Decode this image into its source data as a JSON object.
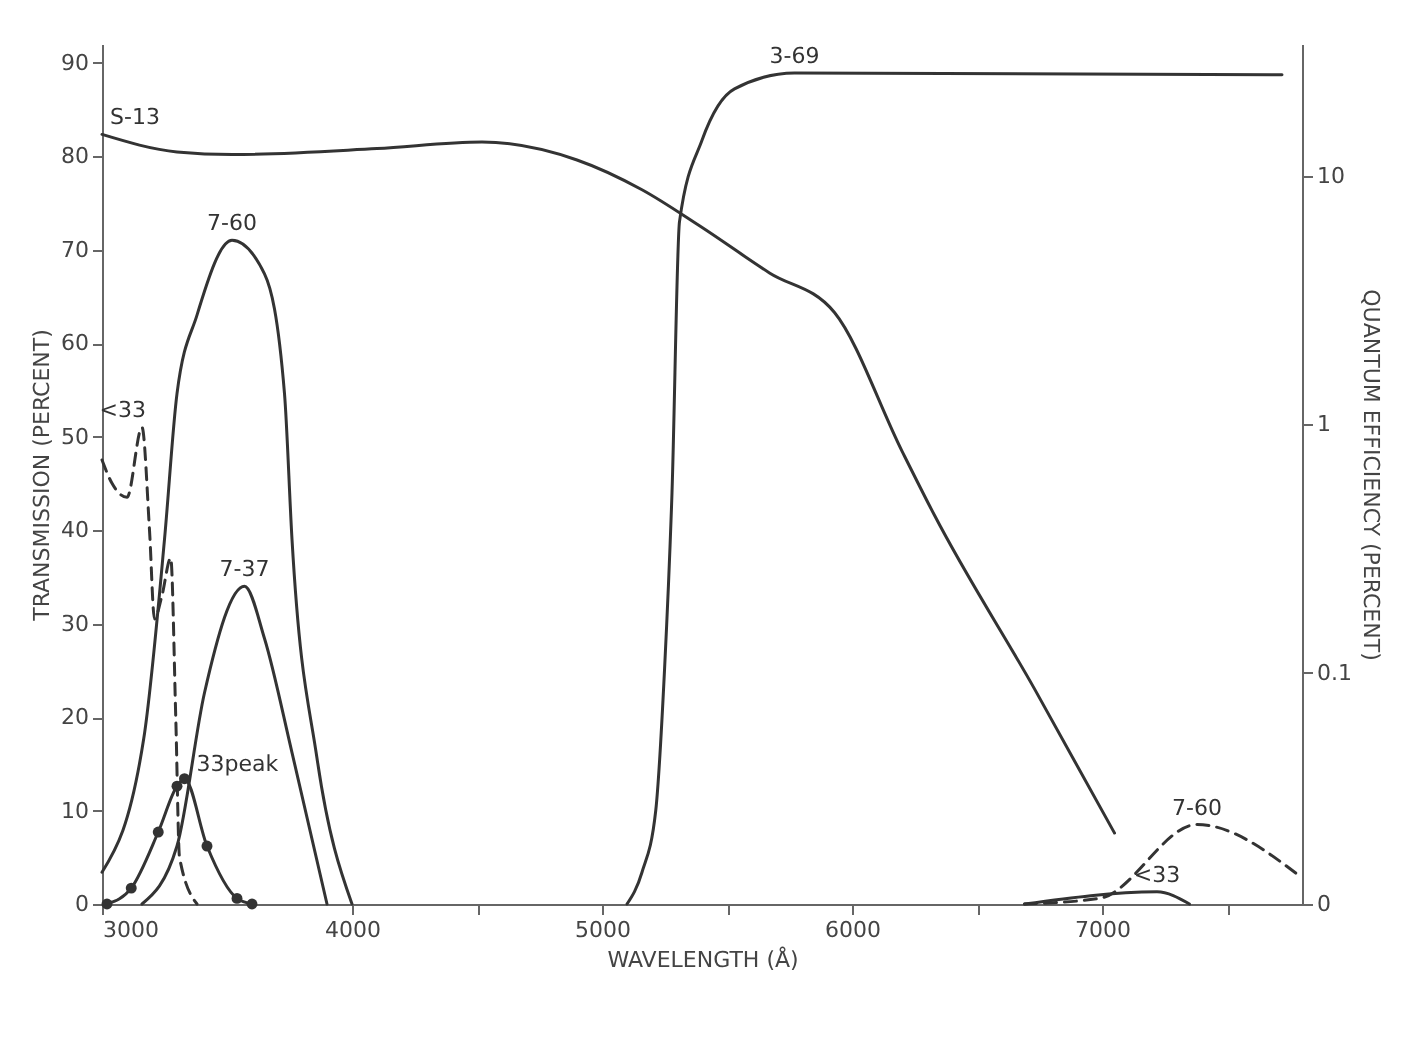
{
  "chart_data": {
    "type": "line",
    "xlabel": "WAVELENGTH (Å)",
    "ylabel": "TRANSMISSION (PERCENT)",
    "y2label": "QUANTUM EFFICIENCY (PERCENT)",
    "xlim": [
      3000,
      7800
    ],
    "xticks": [
      3000,
      4000,
      {
        "value": 4500,
        "label": null
      },
      5000,
      {
        "value": 5500,
        "label": null
      },
      6000,
      {
        "value": 6500,
        "label": null
      },
      7000,
      {
        "value": 7500,
        "label": null
      }
    ],
    "ylim": [
      0,
      92
    ],
    "yticks": [
      0,
      10,
      20,
      30,
      40,
      50,
      60,
      70,
      80,
      90
    ],
    "y2lim": [
      0.0117,
      34
    ],
    "y2ticks": [
      {
        "value": 0.0117,
        "label": "0"
      },
      0.1,
      1,
      10
    ],
    "log": "y2",
    "grid": false,
    "series": [
      {
        "name": "S-13",
        "axis": "y2",
        "color": "#333333",
        "line_style": "solid",
        "x": [
          3000,
          3300,
          3520,
          4100,
          4520,
          4900,
          5160,
          5390,
          5670,
          5930,
          6200,
          6330,
          6730,
          7050
        ],
        "values": [
          14.7,
          12.5,
          12.2,
          12.9,
          13.7,
          11.6,
          8.8,
          6.3,
          4.07,
          2.82,
          0.78,
          0.43,
          0.086,
          0.0226
        ]
      },
      {
        "name": "3-69",
        "color": "#333333",
        "line_style": "solid",
        "x": [
          5100,
          5160,
          5215,
          5250,
          5280,
          5310,
          5400,
          5530,
          5770,
          7720
        ],
        "values": [
          0,
          3.4,
          10,
          25,
          44,
          73,
          81.7,
          87.2,
          88.9,
          88.7
        ]
      },
      {
        "name": "7-60",
        "color": "#333333",
        "line_style": "solid",
        "x": [
          3000,
          3167,
          3250,
          3300,
          3380,
          3520,
          3650,
          3730,
          3760,
          3860,
          4000
        ],
        "values": [
          3.4,
          17.7,
          39,
          54.6,
          63,
          71,
          67.4,
          54.6,
          39,
          15.6,
          0
        ]
      },
      {
        "name": "7-37",
        "color": "#333333",
        "line_style": "solid",
        "x": [
          3160,
          3300,
          3410,
          3570,
          3650,
          3760,
          3900
        ],
        "values": [
          0,
          6.2,
          22.6,
          34,
          28.4,
          16.2,
          0
        ]
      },
      {
        "name": "<33",
        "color": "#333333",
        "line_style": "dashed",
        "x": [
          3000,
          3040,
          3100,
          3160,
          3190,
          3210,
          3240,
          3275,
          3295,
          3310,
          3380
        ],
        "values": [
          47.5,
          45,
          43.5,
          51,
          40,
          30.5,
          33,
          37,
          20,
          5,
          0
        ]
      },
      {
        "name": "33peak",
        "color": "#333333",
        "line_style": "solid",
        "marker": "circle",
        "x": [
          3020,
          3117,
          3225,
          3300,
          3330,
          3420,
          3540,
          3600
        ],
        "values": [
          0,
          1.7,
          7.7,
          12.6,
          13.4,
          6.2,
          0.6,
          0
        ]
      },
      {
        "name": "7-60",
        "color": "#333333",
        "line_style": "dashed",
        "x": [
          6690,
          6990,
          7380,
          7800
        ],
        "values": [
          0,
          0.6,
          8.5,
          2.8
        ]
      },
      {
        "name": "<33",
        "color": "#333333",
        "line_style": "solid",
        "x": [
          6690,
          7220,
          7350
        ],
        "values": [
          0,
          1.3,
          0
        ]
      }
    ]
  }
}
